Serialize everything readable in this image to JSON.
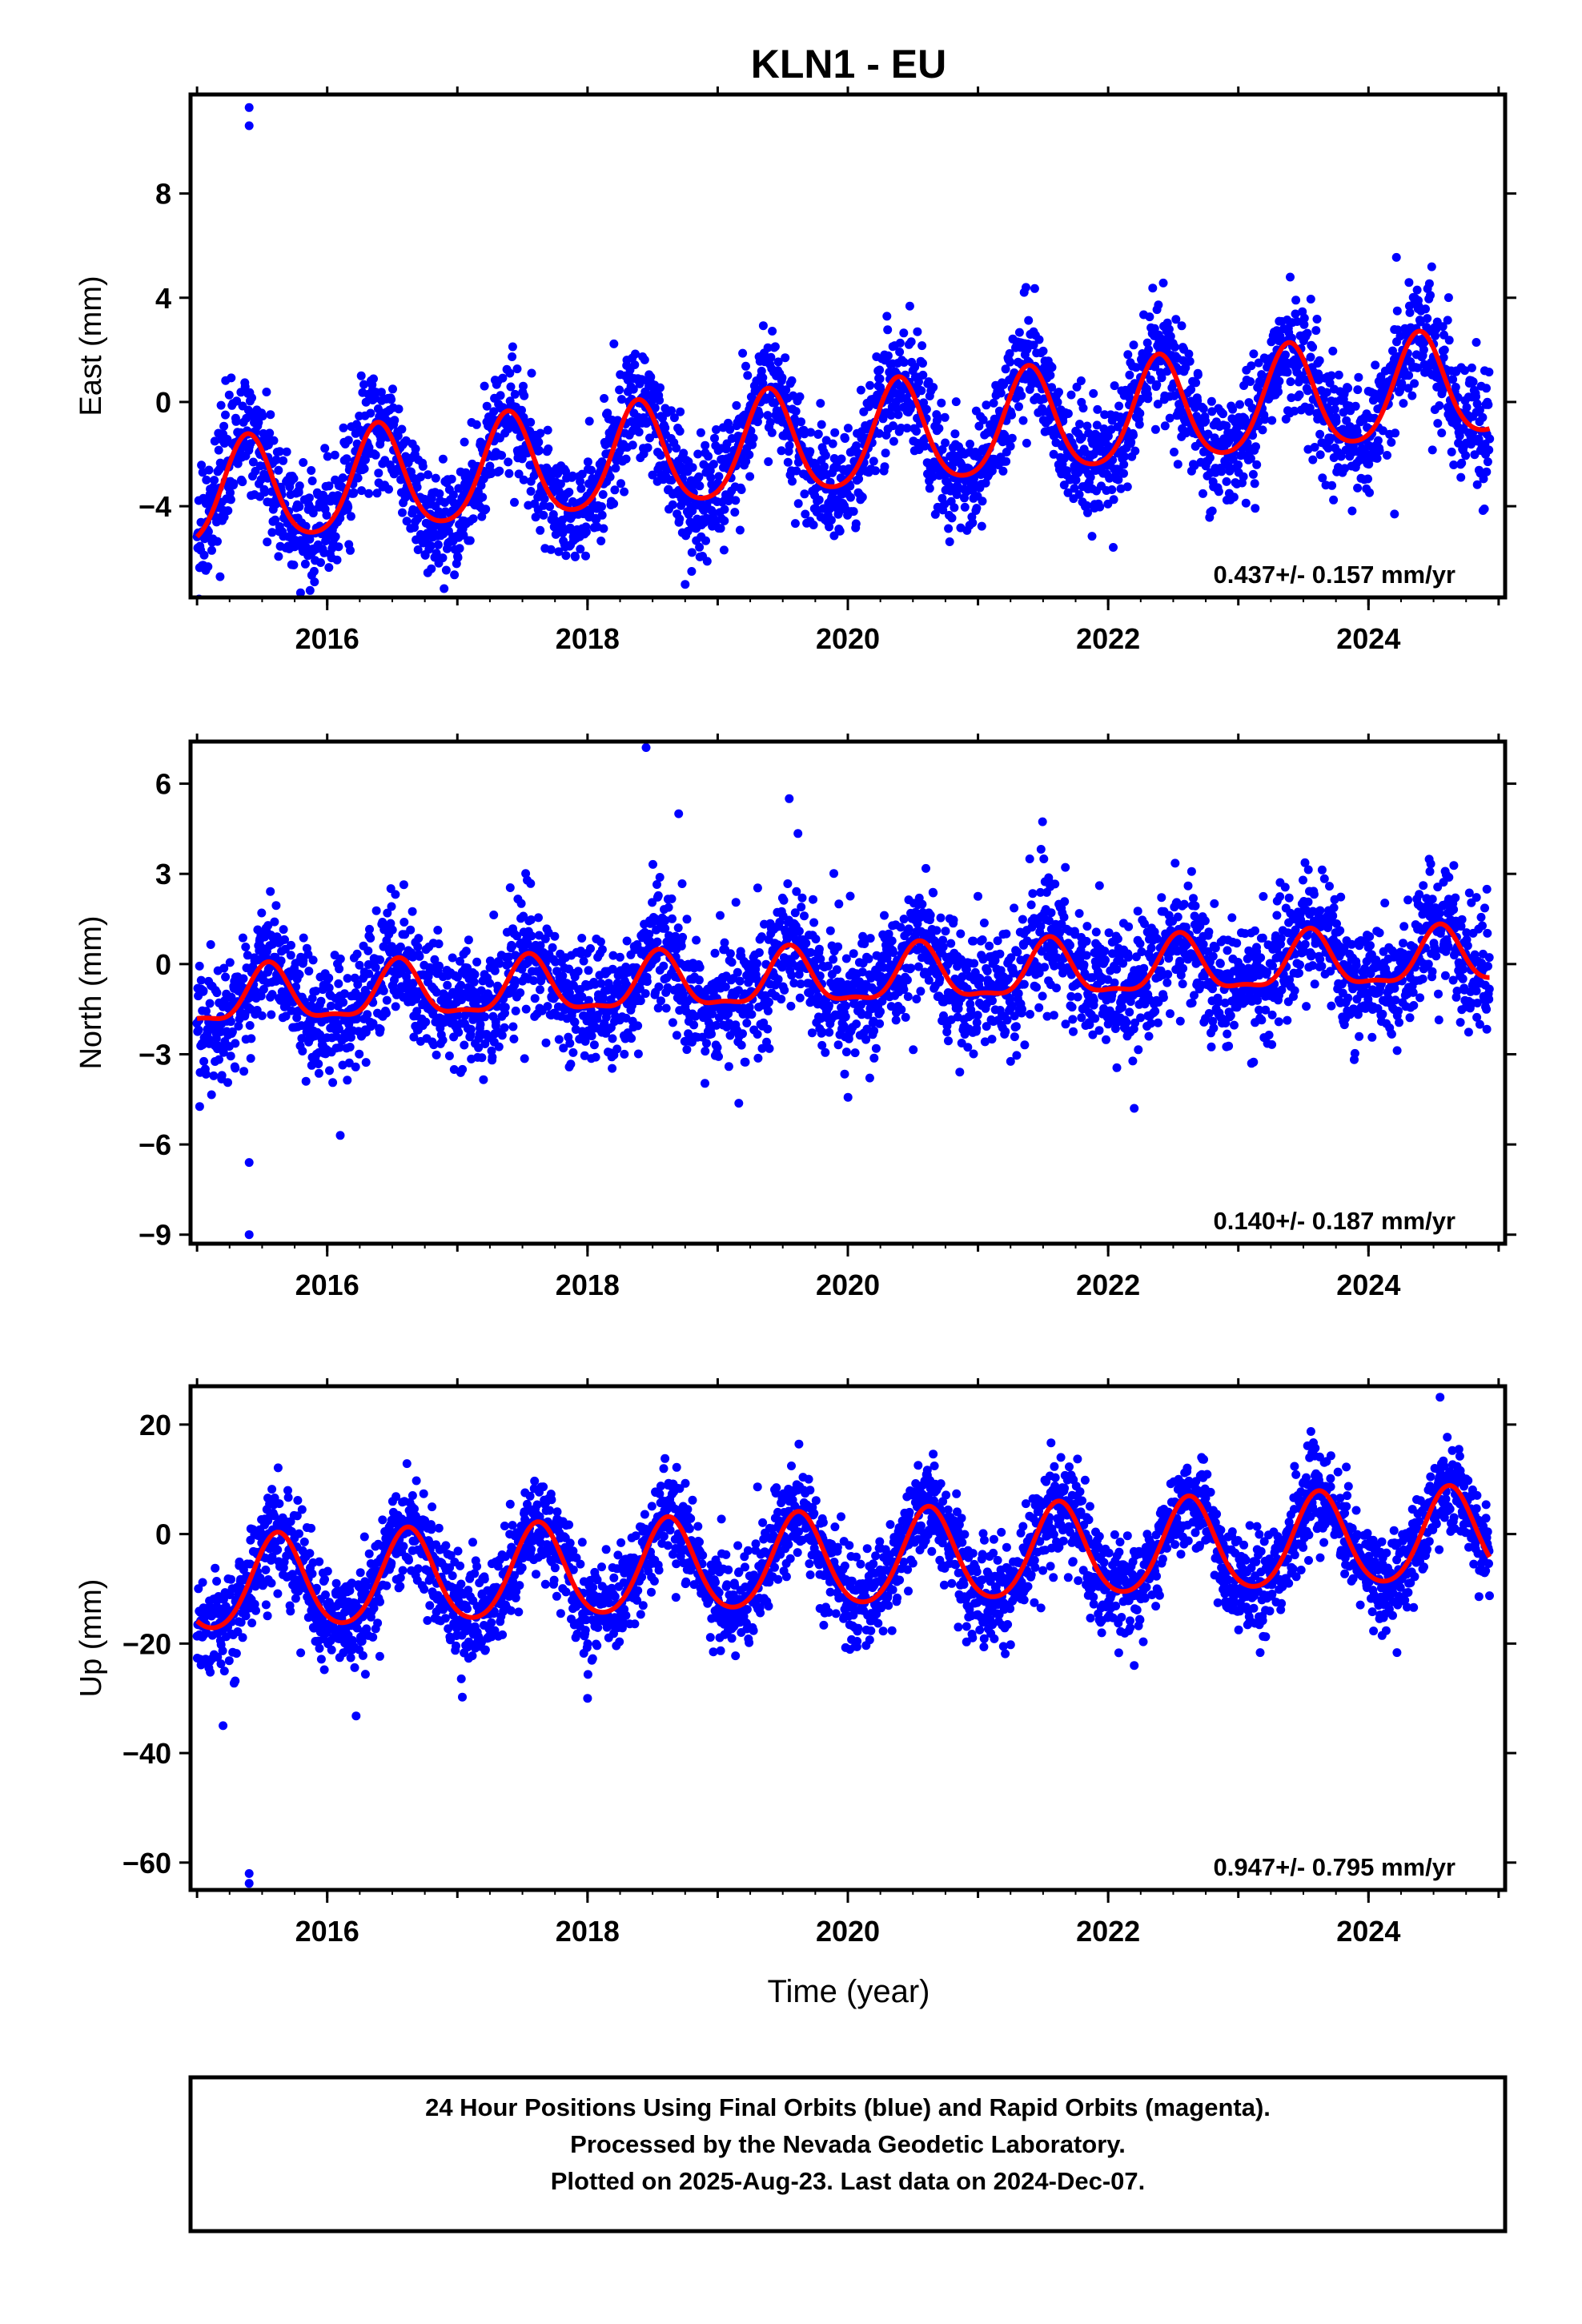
{
  "title": "KLN1 - EU",
  "xlabel": "Time (year)",
  "footer": {
    "line1": "24 Hour Positions Using Final Orbits (blue) and Rapid Orbits (magenta).",
    "line2": "Processed by the Nevada Geodetic Laboratory.",
    "line3": "Plotted on 2025-Aug-23. Last data on 2024-Dec-07."
  },
  "colors": {
    "points": "#0000ff",
    "model": "#ff0000",
    "frame": "#000000"
  },
  "chart_data": [
    {
      "type": "scatter",
      "ylabel": "East (mm)",
      "rate": "0.437+/- 0.157 mm/yr",
      "xlim": [
        2014.95,
        2025.05
      ],
      "ylim": [
        -7.5,
        11.8
      ],
      "yticks": [
        -4,
        0,
        4,
        8
      ],
      "ytick_labels": [
        "−4",
        "0",
        "4",
        "8"
      ],
      "xticks": [
        2016,
        2018,
        2020,
        2022,
        2024
      ],
      "xtick_labels": [
        "2016",
        "2018",
        "2020",
        "2022",
        "2024"
      ],
      "trend": {
        "offset": -1.5,
        "rate": 0.437,
        "annual_amp": 2.0,
        "peak_phase": 0.39,
        "semi_amp": 0.3,
        "noise": 1.1
      },
      "outliers": [
        [
          2015.4,
          11.3
        ],
        [
          2015.4,
          10.6
        ],
        [
          2018.75,
          -7.0
        ],
        [
          2018.8,
          -6.5
        ],
        [
          2016.8,
          -6.4
        ],
        [
          2024.2,
          -4.3
        ]
      ]
    },
    {
      "type": "scatter",
      "ylabel": "North (mm)",
      "rate": "0.140+/- 0.187 mm/yr",
      "xlim": [
        2014.95,
        2025.05
      ],
      "ylim": [
        -9.3,
        7.4
      ],
      "yticks": [
        -9,
        -6,
        -3,
        0,
        3,
        6
      ],
      "ytick_labels": [
        "−9",
        "−6",
        "−3",
        "0",
        "3",
        "6"
      ],
      "xticks": [
        2016,
        2018,
        2020,
        2022,
        2024
      ],
      "xtick_labels": [
        "2016",
        "2018",
        "2020",
        "2022",
        "2024"
      ],
      "trend": {
        "offset": -0.5,
        "rate": 0.14,
        "annual_amp": 0.9,
        "peak_phase": 0.55,
        "semi_amp": 0.3,
        "noise": 1.0
      },
      "outliers": [
        [
          2015.4,
          -9.0
        ],
        [
          2015.4,
          -6.6
        ],
        [
          2018.45,
          7.2
        ],
        [
          2018.7,
          5.0
        ],
        [
          2019.55,
          5.5
        ],
        [
          2022.2,
          -4.8
        ],
        [
          2016.1,
          -5.7
        ]
      ]
    },
    {
      "type": "scatter",
      "ylabel": "Up (mm)",
      "rate": "0.947+/- 0.795 mm/yr",
      "xlim": [
        2014.95,
        2025.05
      ],
      "ylim": [
        -65,
        27
      ],
      "yticks": [
        -60,
        -40,
        -20,
        0,
        20
      ],
      "ytick_labels": [
        "−60",
        "−40",
        "−20",
        "0",
        "20"
      ],
      "xticks": [
        2016,
        2018,
        2020,
        2022,
        2024
      ],
      "xtick_labels": [
        "2016",
        "2018",
        "2020",
        "2022",
        "2024"
      ],
      "trend": {
        "offset": -5.0,
        "rate": 0.947,
        "annual_amp": 8.5,
        "peak_phase": 0.62,
        "semi_amp": 1.0,
        "noise": 4.5
      },
      "outliers": [
        [
          2015.4,
          -62
        ],
        [
          2015.4,
          -63.8
        ],
        [
          2015.2,
          -35
        ],
        [
          2018.0,
          -30
        ],
        [
          2022.2,
          -24
        ],
        [
          2024.55,
          25
        ]
      ]
    }
  ]
}
